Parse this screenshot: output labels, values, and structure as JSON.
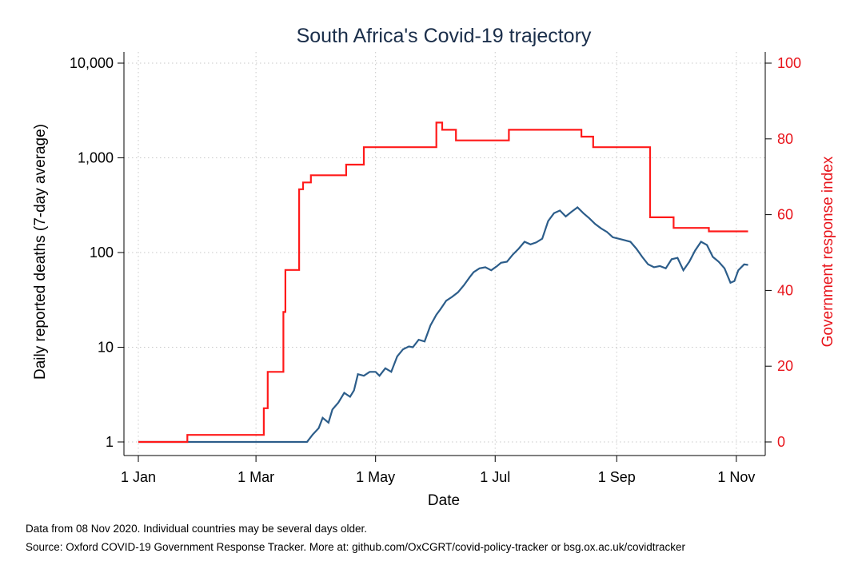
{
  "chart_data": {
    "type": "line",
    "title": "South Africa's Covid-19 trajectory",
    "xlabel": "Date",
    "ylabel": "Daily reported deaths (7-day average)",
    "y2label": "Government response index",
    "x_ticks": [
      {
        "date": "2020-01-01",
        "label": "1 Jan"
      },
      {
        "date": "2020-03-01",
        "label": "1 Mar"
      },
      {
        "date": "2020-05-01",
        "label": "1 May"
      },
      {
        "date": "2020-07-01",
        "label": "1 Jul"
      },
      {
        "date": "2020-09-01",
        "label": "1 Sep"
      },
      {
        "date": "2020-11-01",
        "label": "1 Nov"
      }
    ],
    "xlim": [
      "2020-01-01",
      "2020-11-08"
    ],
    "y_scale": "log",
    "ylim": [
      1,
      10000
    ],
    "y_ticks": [
      {
        "value": 1,
        "label": "1"
      },
      {
        "value": 10,
        "label": "10"
      },
      {
        "value": 100,
        "label": "100"
      },
      {
        "value": 1000,
        "label": "1,000"
      },
      {
        "value": 10000,
        "label": "10,000"
      }
    ],
    "y2lim": [
      0,
      100
    ],
    "y2_ticks": [
      {
        "value": 0,
        "label": "0"
      },
      {
        "value": 20,
        "label": "20"
      },
      {
        "value": 40,
        "label": "40"
      },
      {
        "value": 60,
        "label": "60"
      },
      {
        "value": 80,
        "label": "80"
      },
      {
        "value": 100,
        "label": "100"
      }
    ],
    "grid": true,
    "series": [
      {
        "axis": "left",
        "color": "#2c5d8a",
        "points": [
          [
            "2020-01-01",
            1
          ],
          [
            "2020-03-27",
            1
          ],
          [
            "2020-03-30",
            1.2
          ],
          [
            "2020-04-02",
            1.4
          ],
          [
            "2020-04-04",
            1.8
          ],
          [
            "2020-04-07",
            1.6
          ],
          [
            "2020-04-09",
            2.2
          ],
          [
            "2020-04-12",
            2.6
          ],
          [
            "2020-04-15",
            3.3
          ],
          [
            "2020-04-18",
            3.0
          ],
          [
            "2020-04-20",
            3.5
          ],
          [
            "2020-04-22",
            5.2
          ],
          [
            "2020-04-25",
            5.0
          ],
          [
            "2020-04-28",
            5.5
          ],
          [
            "2020-05-01",
            5.5
          ],
          [
            "2020-05-03",
            5.0
          ],
          [
            "2020-05-06",
            6.0
          ],
          [
            "2020-05-09",
            5.5
          ],
          [
            "2020-05-12",
            8
          ],
          [
            "2020-05-15",
            9.5
          ],
          [
            "2020-05-18",
            10.2
          ],
          [
            "2020-05-20",
            10
          ],
          [
            "2020-05-23",
            12
          ],
          [
            "2020-05-26",
            11.5
          ],
          [
            "2020-05-29",
            17
          ],
          [
            "2020-06-01",
            22
          ],
          [
            "2020-06-03",
            25
          ],
          [
            "2020-06-06",
            31
          ],
          [
            "2020-06-09",
            34
          ],
          [
            "2020-06-12",
            38
          ],
          [
            "2020-06-15",
            45
          ],
          [
            "2020-06-18",
            55
          ],
          [
            "2020-06-20",
            62
          ],
          [
            "2020-06-23",
            68
          ],
          [
            "2020-06-26",
            70
          ],
          [
            "2020-06-29",
            65
          ],
          [
            "2020-07-02",
            72
          ],
          [
            "2020-07-04",
            78
          ],
          [
            "2020-07-07",
            80
          ],
          [
            "2020-07-10",
            95
          ],
          [
            "2020-07-13",
            110
          ],
          [
            "2020-07-16",
            130
          ],
          [
            "2020-07-19",
            122
          ],
          [
            "2020-07-22",
            128
          ],
          [
            "2020-07-25",
            140
          ],
          [
            "2020-07-28",
            215
          ],
          [
            "2020-07-31",
            260
          ],
          [
            "2020-08-03",
            278
          ],
          [
            "2020-08-06",
            240
          ],
          [
            "2020-08-09",
            270
          ],
          [
            "2020-08-12",
            300
          ],
          [
            "2020-08-15",
            260
          ],
          [
            "2020-08-18",
            230
          ],
          [
            "2020-08-21",
            200
          ],
          [
            "2020-08-24",
            180
          ],
          [
            "2020-08-27",
            165
          ],
          [
            "2020-08-30",
            145
          ],
          [
            "2020-09-02",
            140
          ],
          [
            "2020-09-05",
            135
          ],
          [
            "2020-09-08",
            130
          ],
          [
            "2020-09-11",
            110
          ],
          [
            "2020-09-14",
            90
          ],
          [
            "2020-09-17",
            75
          ],
          [
            "2020-09-20",
            70
          ],
          [
            "2020-09-23",
            72
          ],
          [
            "2020-09-26",
            68
          ],
          [
            "2020-09-29",
            85
          ],
          [
            "2020-10-02",
            88
          ],
          [
            "2020-10-05",
            65
          ],
          [
            "2020-10-08",
            80
          ],
          [
            "2020-10-11",
            105
          ],
          [
            "2020-10-14",
            130
          ],
          [
            "2020-10-17",
            120
          ],
          [
            "2020-10-20",
            90
          ],
          [
            "2020-10-23",
            80
          ],
          [
            "2020-10-26",
            68
          ],
          [
            "2020-10-29",
            48
          ],
          [
            "2020-10-31",
            50
          ],
          [
            "2020-11-02",
            65
          ],
          [
            "2020-11-05",
            75
          ],
          [
            "2020-11-07",
            74
          ]
        ]
      },
      {
        "axis": "right",
        "color": "#ff1a1a",
        "points": [
          [
            "2020-01-01",
            0
          ],
          [
            "2020-01-26",
            0
          ],
          [
            "2020-01-26",
            1.85
          ],
          [
            "2020-03-05",
            1.85
          ],
          [
            "2020-03-05",
            8.9
          ],
          [
            "2020-03-07",
            8.9
          ],
          [
            "2020-03-07",
            18.5
          ],
          [
            "2020-03-15",
            18.5
          ],
          [
            "2020-03-15",
            34.3
          ],
          [
            "2020-03-16",
            34.3
          ],
          [
            "2020-03-16",
            45.4
          ],
          [
            "2020-03-23",
            45.4
          ],
          [
            "2020-03-23",
            66.7
          ],
          [
            "2020-03-25",
            66.7
          ],
          [
            "2020-03-25",
            68.5
          ],
          [
            "2020-03-29",
            68.5
          ],
          [
            "2020-03-29",
            70.4
          ],
          [
            "2020-04-16",
            70.4
          ],
          [
            "2020-04-16",
            73.2
          ],
          [
            "2020-04-25",
            73.2
          ],
          [
            "2020-04-25",
            77.8
          ],
          [
            "2020-06-01",
            77.8
          ],
          [
            "2020-06-01",
            84.3
          ],
          [
            "2020-06-04",
            84.3
          ],
          [
            "2020-06-04",
            82.4
          ],
          [
            "2020-06-11",
            82.4
          ],
          [
            "2020-06-11",
            79.6
          ],
          [
            "2020-07-08",
            79.6
          ],
          [
            "2020-07-08",
            82.4
          ],
          [
            "2020-08-14",
            82.4
          ],
          [
            "2020-08-14",
            80.6
          ],
          [
            "2020-08-20",
            80.6
          ],
          [
            "2020-08-20",
            77.8
          ],
          [
            "2020-09-18",
            77.8
          ],
          [
            "2020-09-18",
            59.3
          ],
          [
            "2020-09-30",
            59.3
          ],
          [
            "2020-09-30",
            56.5
          ],
          [
            "2020-10-18",
            56.5
          ],
          [
            "2020-10-18",
            55.6
          ],
          [
            "2020-11-07",
            55.6
          ]
        ]
      }
    ]
  },
  "footer": {
    "note1": "Data from 08 Nov 2020. Individual countries may be several days older.",
    "note2": "Source: Oxford COVID-19 Government Response Tracker. More at: github.com/OxCGRT/covid-policy-tracker or bsg.ox.ac.uk/covidtracker"
  }
}
